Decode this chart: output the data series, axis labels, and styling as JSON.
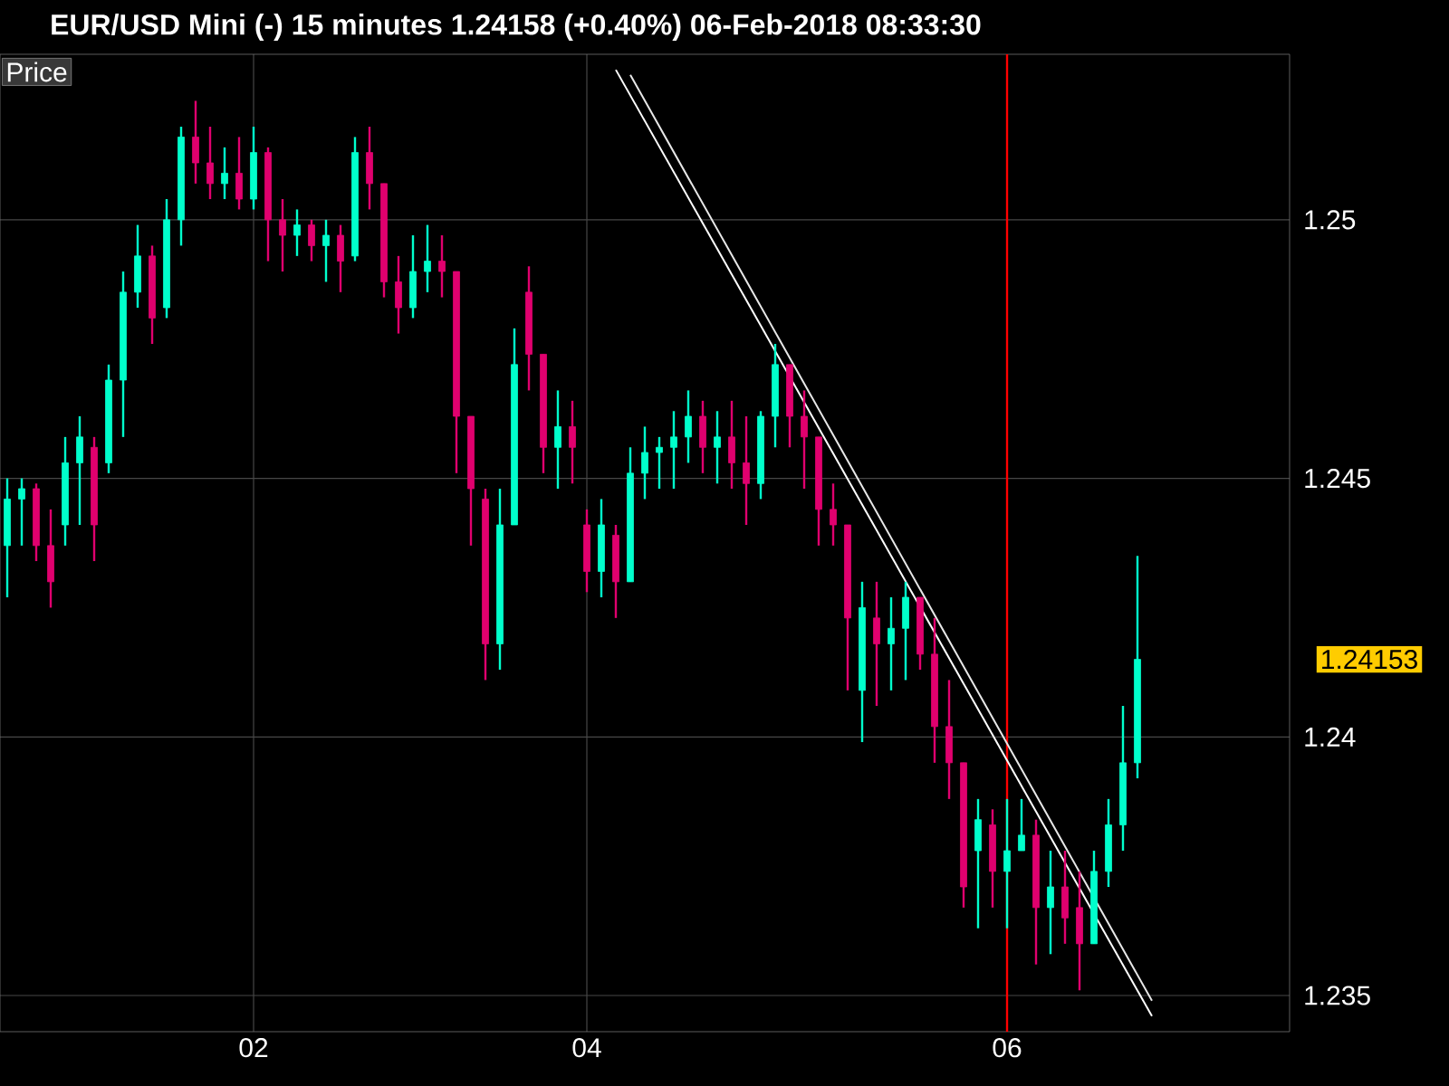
{
  "chart_data": {
    "type": "candlestick",
    "title": "EUR/USD Mini (-) 15 minutes 1.24158 (+0.40%) 06-Feb-2018 08:33:30",
    "categories": [
      null,
      null,
      null,
      null,
      null,
      null,
      null,
      null,
      null,
      null,
      null,
      null,
      null,
      null,
      null,
      null,
      null,
      "02",
      null,
      null,
      null,
      null,
      null,
      null,
      null,
      null,
      null,
      null,
      null,
      null,
      null,
      null,
      null,
      null,
      null,
      null,
      null,
      null,
      null,
      null,
      "04",
      null,
      null,
      null,
      null,
      null,
      null,
      null,
      null,
      null,
      null,
      null,
      null,
      null,
      null,
      null,
      null,
      null,
      null,
      null,
      null,
      null,
      null,
      null,
      null,
      null,
      null,
      null,
      null,
      "06",
      null,
      null,
      null,
      null,
      null,
      null,
      null,
      null,
      null,
      null,
      null,
      null,
      null,
      null,
      null,
      null,
      null,
      null,
      null
    ],
    "ohlc": [
      [
        1.2437,
        1.245,
        1.2427,
        1.2446
      ],
      [
        1.2446,
        1.245,
        1.2437,
        1.2448
      ],
      [
        1.2448,
        1.2449,
        1.2434,
        1.2437
      ],
      [
        1.2437,
        1.2444,
        1.2425,
        1.243
      ],
      [
        1.2441,
        1.2458,
        1.2437,
        1.2453
      ],
      [
        1.2453,
        1.2462,
        1.2441,
        1.2458
      ],
      [
        1.2456,
        1.2458,
        1.2434,
        1.2441
      ],
      [
        1.2453,
        1.2472,
        1.2451,
        1.2469
      ],
      [
        1.2469,
        1.249,
        1.2458,
        1.2486
      ],
      [
        1.2486,
        1.2499,
        1.2483,
        1.2493
      ],
      [
        1.2493,
        1.2495,
        1.2476,
        1.2481
      ],
      [
        1.2483,
        1.2504,
        1.2481,
        1.25
      ],
      [
        1.25,
        1.2518,
        1.2495,
        1.2516
      ],
      [
        1.2516,
        1.2523,
        1.2507,
        1.2511
      ],
      [
        1.2511,
        1.2518,
        1.2504,
        1.2507
      ],
      [
        1.2507,
        1.2514,
        1.2504,
        1.2509
      ],
      [
        1.2509,
        1.2516,
        1.2502,
        1.2504
      ],
      [
        1.2504,
        1.2518,
        1.2502,
        1.2513
      ],
      [
        1.2513,
        1.2514,
        1.2492,
        1.25
      ],
      [
        1.25,
        1.2504,
        1.249,
        1.2497
      ],
      [
        1.2497,
        1.2502,
        1.2493,
        1.2499
      ],
      [
        1.2499,
        1.25,
        1.2492,
        1.2495
      ],
      [
        1.2495,
        1.25,
        1.2488,
        1.2497
      ],
      [
        1.2497,
        1.2499,
        1.2486,
        1.2492
      ],
      [
        1.2493,
        1.2516,
        1.2492,
        1.2513
      ],
      [
        1.2513,
        1.2518,
        1.2502,
        1.2507
      ],
      [
        1.2507,
        1.2507,
        1.2485,
        1.2488
      ],
      [
        1.2488,
        1.2493,
        1.2478,
        1.2483
      ],
      [
        1.2483,
        1.2497,
        1.2481,
        1.249
      ],
      [
        1.249,
        1.2499,
        1.2486,
        1.2492
      ],
      [
        1.2492,
        1.2497,
        1.2485,
        1.249
      ],
      [
        1.249,
        1.249,
        1.2451,
        1.2462
      ],
      [
        1.2462,
        1.2462,
        1.2437,
        1.2448
      ],
      [
        1.2446,
        1.2448,
        1.2411,
        1.2418
      ],
      [
        1.2418,
        1.2448,
        1.2413,
        1.2441
      ],
      [
        1.2441,
        1.2479,
        1.2441,
        1.2472
      ],
      [
        1.2486,
        1.2491,
        1.2467,
        1.2474
      ],
      [
        1.2474,
        1.2474,
        1.2451,
        1.2456
      ],
      [
        1.2456,
        1.2467,
        1.2448,
        1.246
      ],
      [
        1.246,
        1.2465,
        1.2449,
        1.2456
      ],
      [
        1.2441,
        1.2444,
        1.2428,
        1.2432
      ],
      [
        1.2432,
        1.2446,
        1.2427,
        1.2441
      ],
      [
        1.2439,
        1.2441,
        1.2423,
        1.243
      ],
      [
        1.243,
        1.2456,
        1.243,
        1.2451
      ],
      [
        1.2451,
        1.246,
        1.2446,
        1.2455
      ],
      [
        1.2455,
        1.2458,
        1.2448,
        1.2456
      ],
      [
        1.2456,
        1.2463,
        1.2448,
        1.2458
      ],
      [
        1.2458,
        1.2467,
        1.2453,
        1.2462
      ],
      [
        1.2462,
        1.2465,
        1.2451,
        1.2456
      ],
      [
        1.2456,
        1.2463,
        1.2449,
        1.2458
      ],
      [
        1.2458,
        1.2465,
        1.2448,
        1.2453
      ],
      [
        1.2453,
        1.2462,
        1.2441,
        1.2449
      ],
      [
        1.2449,
        1.2463,
        1.2446,
        1.2462
      ],
      [
        1.2462,
        1.2476,
        1.2456,
        1.2472
      ],
      [
        1.2472,
        1.2472,
        1.2456,
        1.2462
      ],
      [
        1.2462,
        1.2467,
        1.2448,
        1.2458
      ],
      [
        1.2458,
        1.2458,
        1.2437,
        1.2444
      ],
      [
        1.2444,
        1.2449,
        1.2437,
        1.2441
      ],
      [
        1.2441,
        1.2441,
        1.2409,
        1.2423
      ],
      [
        1.2409,
        1.243,
        1.2399,
        1.2425
      ],
      [
        1.2423,
        1.243,
        1.2406,
        1.2418
      ],
      [
        1.2418,
        1.2427,
        1.2409,
        1.2421
      ],
      [
        1.2421,
        1.243,
        1.2411,
        1.2427
      ],
      [
        1.2427,
        1.2427,
        1.2413,
        1.2416
      ],
      [
        1.2416,
        1.2423,
        1.2395,
        1.2402
      ],
      [
        1.2402,
        1.2411,
        1.2388,
        1.2395
      ],
      [
        1.2395,
        1.2395,
        1.2367,
        1.2371
      ],
      [
        1.2378,
        1.2388,
        1.2363,
        1.2384
      ],
      [
        1.2383,
        1.2386,
        1.2367,
        1.2374
      ],
      [
        1.2374,
        1.2388,
        1.2363,
        1.2378
      ],
      [
        1.2378,
        1.2388,
        1.2378,
        1.2381
      ],
      [
        1.2381,
        1.2384,
        1.2356,
        1.2367
      ],
      [
        1.2367,
        1.2378,
        1.2358,
        1.2371
      ],
      [
        1.2371,
        1.2378,
        1.236,
        1.2365
      ],
      [
        1.2367,
        1.2374,
        1.2351,
        1.236
      ],
      [
        1.236,
        1.2378,
        1.236,
        1.2374
      ],
      [
        1.2374,
        1.2388,
        1.2371,
        1.2383
      ],
      [
        1.2383,
        1.2406,
        1.2378,
        1.2395
      ],
      [
        1.2395,
        1.2435,
        1.2392,
        1.2415
      ],
      null,
      null,
      null,
      null,
      null,
      null,
      null,
      null,
      null,
      null
    ],
    "colors": [
      "#00ffcc",
      "#00ffcc",
      "#e0006e",
      "#e0006e",
      "#00ffcc",
      "#00ffcc",
      "#e0006e",
      "#00ffcc",
      "#00ffcc",
      "#00ffcc",
      "#e0006e",
      "#00ffcc",
      "#00ffcc",
      "#e0006e",
      "#e0006e",
      "#00ffcc",
      "#e0006e",
      "#00ffcc",
      "#e0006e",
      "#e0006e",
      "#00ffcc",
      "#e0006e",
      "#00ffcc",
      "#e0006e",
      "#00ffcc",
      "#e0006e",
      "#e0006e",
      "#e0006e",
      "#00ffcc",
      "#00ffcc",
      "#e0006e",
      "#e0006e",
      "#e0006e",
      "#e0006e",
      "#00ffcc",
      "#00ffcc",
      "#e0006e",
      "#e0006e",
      "#00ffcc",
      "#e0006e",
      "#e0006e",
      "#00ffcc",
      "#e0006e",
      "#00ffcc",
      "#00ffcc",
      "#00ffcc",
      "#00ffcc",
      "#00ffcc",
      "#e0006e",
      "#00ffcc",
      "#e0006e",
      "#e0006e",
      "#00ffcc",
      "#00ffcc",
      "#e0006e",
      "#e0006e",
      "#e0006e",
      "#e0006e",
      "#e0006e",
      "#00ffcc",
      "#e0006e",
      "#00ffcc",
      "#00ffcc",
      "#e0006e",
      "#e0006e",
      "#e0006e",
      "#e0006e",
      "#00ffcc",
      "#e0006e",
      "#00ffcc",
      "#00ffcc",
      "#e0006e",
      "#00ffcc",
      "#e0006e",
      "#e0006e",
      "#00ffcc",
      "#00ffcc",
      "#00ffcc",
      "#00ffcc",
      null,
      null,
      null,
      null,
      null,
      null,
      null,
      null,
      null,
      null
    ],
    "series": [
      {
        "type": "line",
        "color": "#ffffff",
        "values": [
          null,
          null,
          null,
          null,
          null,
          null,
          null,
          null,
          null,
          null,
          null,
          null,
          null,
          null,
          null,
          null,
          null,
          null,
          null,
          null,
          null,
          null,
          null,
          null,
          null,
          null,
          null,
          null,
          null,
          null,
          null,
          null,
          null,
          null,
          null,
          null,
          null,
          null,
          null,
          null,
          null,
          null,
          1.2529,
          null,
          null,
          null,
          null,
          null,
          null,
          null,
          null,
          null,
          null,
          null,
          null,
          null,
          null,
          null,
          null,
          null,
          null,
          null,
          null,
          null,
          null,
          null,
          null,
          null,
          null,
          null,
          null,
          null,
          null,
          null,
          null,
          null,
          null,
          null,
          null,
          1.2346,
          null,
          null,
          null,
          null,
          null,
          null,
          null,
          null,
          null
        ]
      },
      {
        "type": "line",
        "color": "#e8e8e8",
        "values": [
          null,
          null,
          null,
          null,
          null,
          null,
          null,
          null,
          null,
          null,
          null,
          null,
          null,
          null,
          null,
          null,
          null,
          null,
          null,
          null,
          null,
          null,
          null,
          null,
          null,
          null,
          null,
          null,
          null,
          null,
          null,
          null,
          null,
          null,
          null,
          null,
          null,
          null,
          null,
          null,
          null,
          null,
          null,
          1.2528,
          null,
          null,
          null,
          null,
          null,
          null,
          null,
          null,
          null,
          null,
          null,
          null,
          null,
          null,
          null,
          null,
          null,
          null,
          null,
          null,
          null,
          null,
          null,
          null,
          null,
          null,
          null,
          null,
          null,
          null,
          null,
          null,
          null,
          null,
          null,
          1.2349,
          null,
          null,
          null,
          null,
          null,
          null,
          null,
          null,
          null
        ]
      }
    ],
    "ylim": [
      1.2343,
      1.2532
    ],
    "yticks": [
      1.235,
      1.24,
      1.245,
      1.25
    ],
    "grid": true,
    "ref_lines": [
      {
        "axis": "x",
        "value": "06",
        "color": "#ff0000"
      }
    ],
    "annotations": [
      "Price",
      "1.24153"
    ]
  }
}
